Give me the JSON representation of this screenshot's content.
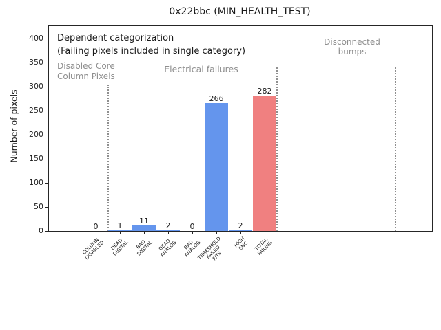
{
  "window": {
    "title": "0x22bbc (MIN_HEALTH_TEST)"
  },
  "annotations": {
    "dependent_line1": "Dependent categorization",
    "dependent_line2": "(Failing pixels included in single category)",
    "section_disabled": "Disabled Core\nColumn Pixels",
    "section_electrical": "Electrical failures",
    "section_disconnected": "Disconnected\nbumps"
  },
  "chart_data": {
    "type": "bar",
    "title": "0x22bbc (MIN_HEALTH_TEST)",
    "xlabel": "",
    "ylabel": "Number of pixels",
    "categories": [
      "COLUMN DISABLED",
      "DEAD DIGITAL",
      "BAD DIGITAL",
      "DEAD ANALOG",
      "BAD ANALOG",
      "THRESHOLD FAILED FITS",
      "HIGH ENC",
      "TOTAL FAILING"
    ],
    "category_label_lines": [
      [
        "COLUMN",
        "DISABLED"
      ],
      [
        "DEAD",
        "DIGITAL"
      ],
      [
        "BAD",
        "DIGITAL"
      ],
      [
        "DEAD",
        "ANALOG"
      ],
      [
        "BAD",
        "ANALOG"
      ],
      [
        "THRESHOLD",
        "FAILED",
        "FITS"
      ],
      [
        "HIGH",
        "ENC"
      ],
      [
        "TOTAL",
        "FAILING"
      ]
    ],
    "values": [
      0,
      1,
      11,
      2,
      0,
      266,
      2,
      282
    ],
    "bar_colors": [
      "#6495ED",
      "#6495ED",
      "#6495ED",
      "#6495ED",
      "#6495ED",
      "#6495ED",
      "#6495ED",
      "#F08080"
    ],
    "value_labels": [
      "0",
      "1",
      "11",
      "2",
      "0",
      "266",
      "2",
      "282"
    ],
    "yticks": [
      0,
      50,
      100,
      150,
      200,
      250,
      300,
      350,
      400
    ],
    "ylim": [
      0,
      426
    ],
    "grid": false,
    "legend": null,
    "sections": [
      {
        "label": "Disabled Core\nColumn Pixels",
        "categories": [
          "COLUMN DISABLED"
        ]
      },
      {
        "label": "Electrical failures",
        "categories": [
          "DEAD DIGITAL",
          "BAD DIGITAL",
          "DEAD ANALOG",
          "BAD ANALOG",
          "THRESHOLD FAILED FITS",
          "HIGH ENC",
          "TOTAL FAILING"
        ]
      },
      {
        "label": "Disconnected\nbumps",
        "categories": []
      }
    ]
  },
  "colors": {
    "bar_blue": "#6495ED",
    "bar_red": "#F08080",
    "muted_text": "#8f8f8f",
    "divider": "#8f8f8f",
    "axis": "#262626"
  }
}
